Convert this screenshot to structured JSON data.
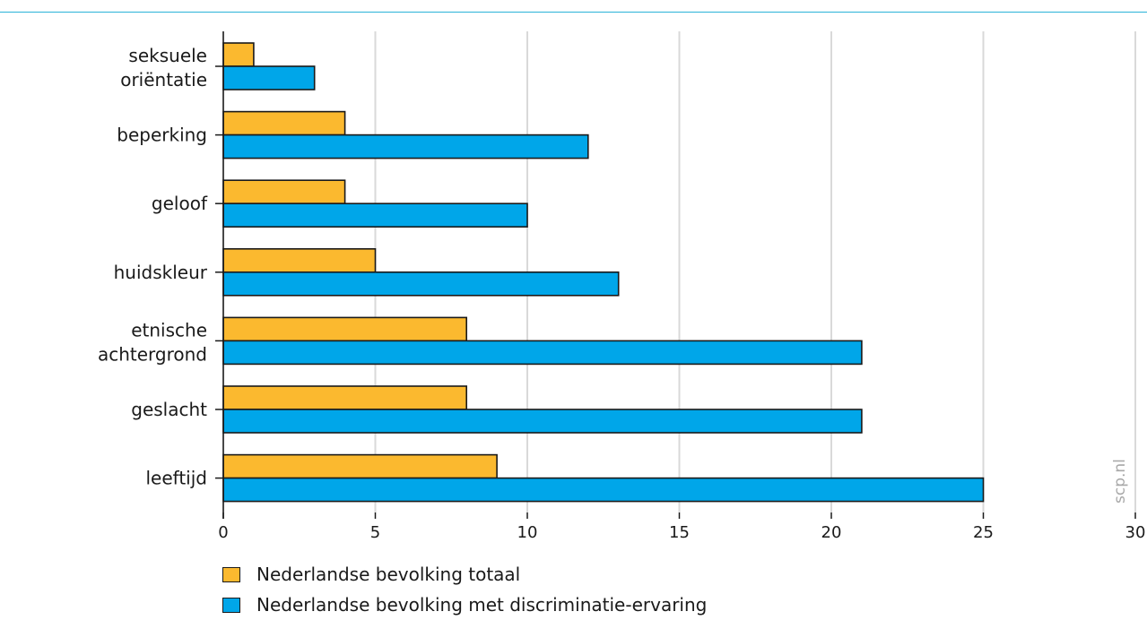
{
  "chart_data": {
    "type": "bar",
    "orientation": "horizontal",
    "categories": [
      "seksuele oriëntatie",
      "beperking",
      "geloof",
      "huidskleur",
      "etnische achtergrond",
      "geslacht",
      "leeftijd"
    ],
    "series": [
      {
        "name": "Nederlandse bevolking totaal",
        "color": "#fbb92f",
        "values": [
          1,
          4,
          4,
          5,
          8,
          8,
          9
        ]
      },
      {
        "name": "Nederlandse bevolking met discriminatie-ervaring",
        "color": "#00a6e9",
        "values": [
          3,
          12,
          10,
          13,
          21,
          21,
          25
        ]
      }
    ],
    "xlim": [
      0,
      30
    ],
    "xticks": [
      "0",
      "5",
      "10",
      "15",
      "20",
      "25",
      "30"
    ],
    "grid": true,
    "legend": "bottom-left",
    "title": "",
    "xlabel": "",
    "ylabel": ""
  },
  "watermark": "scp.nl"
}
